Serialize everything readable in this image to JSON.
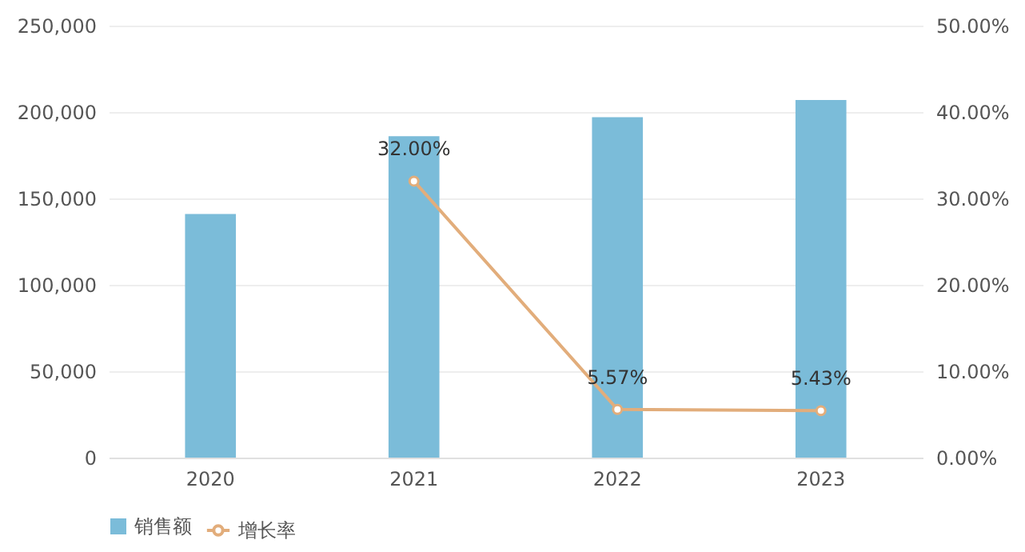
{
  "chart_data": {
    "type": "bar",
    "categories": [
      "2020",
      "2021",
      "2022",
      "2023"
    ],
    "series": [
      {
        "name": "销售额",
        "color": "#7bbcd9",
        "values": [
          141000,
          186000,
          197000,
          207000
        ]
      },
      {
        "name": "增长率",
        "type": "line",
        "axis": "y2",
        "color": "#e2ad7b",
        "marker": "circle",
        "values": [
          null,
          32.0,
          5.57,
          5.43
        ],
        "value_labels": [
          null,
          "32.00%",
          "5.57%",
          "5.43%"
        ]
      }
    ],
    "ylim": [
      0,
      250000
    ],
    "yticks": [
      {
        "value": 0,
        "label": "0"
      },
      {
        "value": 50000,
        "label": "50,000"
      },
      {
        "value": 100000,
        "label": "100,000"
      },
      {
        "value": 150000,
        "label": "150,000"
      },
      {
        "value": 200000,
        "label": "200,000"
      },
      {
        "value": 250000,
        "label": "250,000"
      }
    ],
    "y2lim": [
      0,
      50
    ],
    "y2ticks": [
      {
        "value": 0,
        "label": "0.00%"
      },
      {
        "value": 10,
        "label": "10.00%"
      },
      {
        "value": 20,
        "label": "20.00%"
      },
      {
        "value": 30,
        "label": "30.00%"
      },
      {
        "value": 40,
        "label": "40.00%"
      },
      {
        "value": 50,
        "label": "50.00%"
      }
    ],
    "grid": "y",
    "legend": "bottom"
  }
}
